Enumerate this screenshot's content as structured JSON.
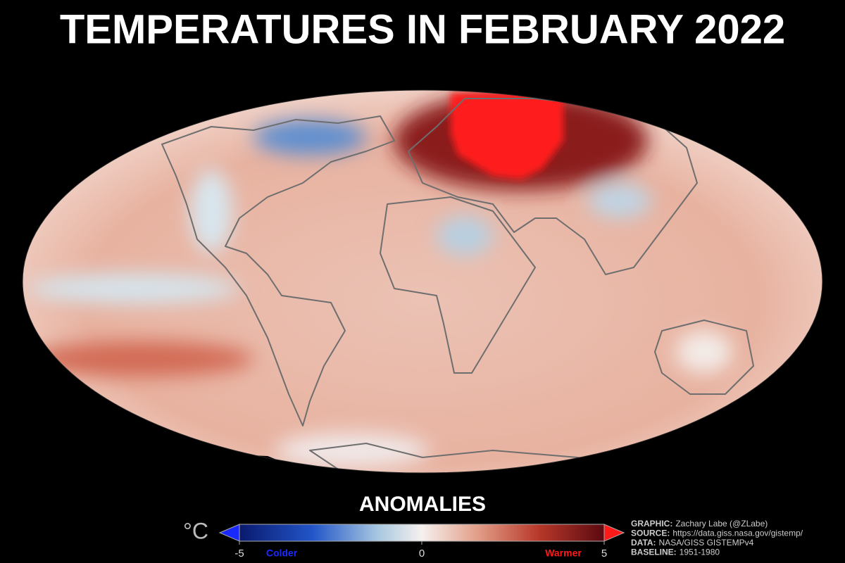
{
  "title": "TEMPERATURES IN FEBRUARY 2022",
  "legend": {
    "title": "ANOMALIES",
    "unit": "°C",
    "lim": [
      -5,
      5
    ],
    "ticks": [
      -5,
      0,
      5
    ],
    "low_label": "Colder",
    "high_label": "Warmer"
  },
  "credits": [
    {
      "key": "GRAPHIC:",
      "text": "Zachary Labe (@ZLabe)"
    },
    {
      "key": "SOURCE:",
      "text": "https://data.giss.nasa.gov/gistemp/"
    },
    {
      "key": "DATA:",
      "text": "NASA/GISS GISTEMPv4"
    },
    {
      "key": "BASELINE:",
      "text": "1951-1980"
    }
  ]
}
